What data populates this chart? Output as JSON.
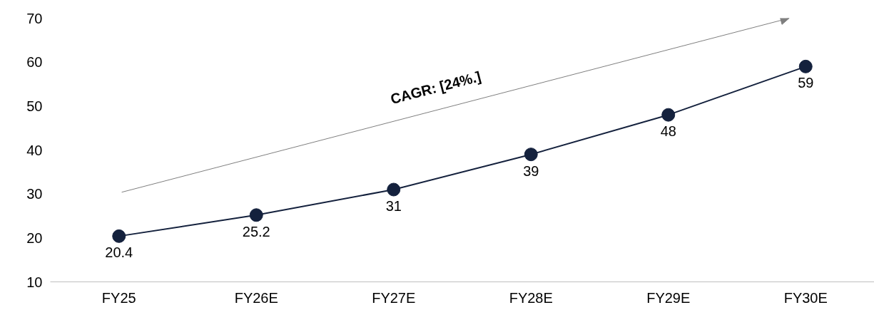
{
  "chart_data": {
    "type": "line",
    "categories": [
      "FY25",
      "FY26E",
      "FY27E",
      "FY28E",
      "FY29E",
      "FY30E"
    ],
    "series": [
      {
        "color": "#14213d",
        "values": [
          20.4,
          25.2,
          31,
          39,
          48,
          59
        ]
      }
    ],
    "ylim": [
      10,
      70
    ],
    "yticks": [
      10,
      20,
      30,
      40,
      50,
      60,
      70
    ],
    "data_labels": true,
    "marker": "circle",
    "grid": false,
    "annotations": [
      "CAGR: [24%.]"
    ]
  }
}
